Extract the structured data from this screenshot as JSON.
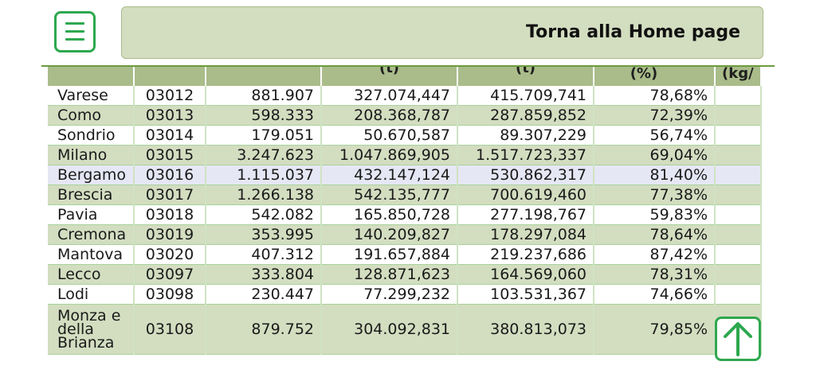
{
  "header": {
    "menu_icon": "hamburger-menu-icon",
    "home_label": "Torna alla Home page",
    "accent_color": "#2ea84f"
  },
  "table": {
    "headers": [
      "",
      "",
      "",
      "(t)",
      "(t)",
      "(%)",
      "(kg/"
    ],
    "rows": [
      {
        "name": "Varese",
        "code": "03012",
        "v1": "881.907",
        "v2": "327.074,447",
        "v3": "415.709,741",
        "pct": "78,68%"
      },
      {
        "name": "Como",
        "code": "03013",
        "v1": "598.333",
        "v2": "208.368,787",
        "v3": "287.859,852",
        "pct": "72,39%"
      },
      {
        "name": "Sondrio",
        "code": "03014",
        "v1": "179.051",
        "v2": "50.670,587",
        "v3": "89.307,229",
        "pct": "56,74%"
      },
      {
        "name": "Milano",
        "code": "03015",
        "v1": "3.247.623",
        "v2": "1.047.869,905",
        "v3": "1.517.723,337",
        "pct": "69,04%"
      },
      {
        "name": "Bergamo",
        "code": "03016",
        "v1": "1.115.037",
        "v2": "432.147,124",
        "v3": "530.862,317",
        "pct": "81,40%"
      },
      {
        "name": "Brescia",
        "code": "03017",
        "v1": "1.266.138",
        "v2": "542.135,777",
        "v3": "700.619,460",
        "pct": "77,38%"
      },
      {
        "name": "Pavia",
        "code": "03018",
        "v1": "542.082",
        "v2": "165.850,728",
        "v3": "277.198,767",
        "pct": "59,83%"
      },
      {
        "name": "Cremona",
        "code": "03019",
        "v1": "353.995",
        "v2": "140.209,827",
        "v3": "178.297,084",
        "pct": "78,64%"
      },
      {
        "name": "Mantova",
        "code": "03020",
        "v1": "407.312",
        "v2": "191.657,884",
        "v3": "219.237,686",
        "pct": "87,42%"
      },
      {
        "name": "Lecco",
        "code": "03097",
        "v1": "333.804",
        "v2": "128.871,623",
        "v3": "164.569,060",
        "pct": "78,31%"
      },
      {
        "name": "Lodi",
        "code": "03098",
        "v1": "230.447",
        "v2": "77.299,232",
        "v3": "103.531,367",
        "pct": "74,66%"
      },
      {
        "name": "Monza e della Brianza",
        "code": "03108",
        "v1": "879.752",
        "v2": "304.092,831",
        "v3": "380.813,073",
        "pct": "79,85%"
      }
    ]
  },
  "footer": {
    "up_icon": "arrow-up-icon"
  }
}
